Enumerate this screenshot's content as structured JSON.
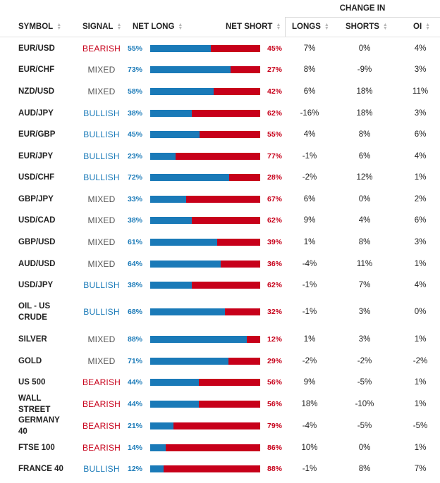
{
  "header": {
    "change_in": "CHANGE IN",
    "symbol": "SYMBOL",
    "signal": "SIGNAL",
    "net_long": "NET LONG",
    "net_short": "NET SHORT",
    "longs": "LONGS",
    "shorts": "SHORTS",
    "oi": "OI"
  },
  "colors": {
    "long": "#1a7ab8",
    "short": "#c7001a",
    "bearish": "#c7001a",
    "bullish": "#1a7ab8",
    "mixed": "#555555"
  },
  "rows": [
    {
      "symbol": "EUR/USD",
      "signal": "BEARISH",
      "net_long": "55%",
      "net_short": "45%",
      "long_fraction": 0.55,
      "longs": "7%",
      "shorts": "0%",
      "oi": "4%"
    },
    {
      "symbol": "EUR/CHF",
      "signal": "MIXED",
      "net_long": "73%",
      "net_short": "27%",
      "long_fraction": 0.73,
      "longs": "8%",
      "shorts": "-9%",
      "oi": "3%"
    },
    {
      "symbol": "NZD/USD",
      "signal": "MIXED",
      "net_long": "58%",
      "net_short": "42%",
      "long_fraction": 0.58,
      "longs": "6%",
      "shorts": "18%",
      "oi": "11%"
    },
    {
      "symbol": "AUD/JPY",
      "signal": "BULLISH",
      "net_long": "38%",
      "net_short": "62%",
      "long_fraction": 0.38,
      "longs": "-16%",
      "shorts": "18%",
      "oi": "3%"
    },
    {
      "symbol": "EUR/GBP",
      "signal": "BULLISH",
      "net_long": "45%",
      "net_short": "55%",
      "long_fraction": 0.45,
      "longs": "4%",
      "shorts": "8%",
      "oi": "6%"
    },
    {
      "symbol": "EUR/JPY",
      "signal": "BULLISH",
      "net_long": "23%",
      "net_short": "77%",
      "long_fraction": 0.23,
      "longs": "-1%",
      "shorts": "6%",
      "oi": "4%"
    },
    {
      "symbol": "USD/CHF",
      "signal": "BULLISH",
      "net_long": "72%",
      "net_short": "28%",
      "long_fraction": 0.72,
      "longs": "-2%",
      "shorts": "12%",
      "oi": "1%"
    },
    {
      "symbol": "GBP/JPY",
      "signal": "MIXED",
      "net_long": "33%",
      "net_short": "67%",
      "long_fraction": 0.33,
      "longs": "6%",
      "shorts": "0%",
      "oi": "2%"
    },
    {
      "symbol": "USD/CAD",
      "signal": "MIXED",
      "net_long": "38%",
      "net_short": "62%",
      "long_fraction": 0.38,
      "longs": "9%",
      "shorts": "4%",
      "oi": "6%"
    },
    {
      "symbol": "GBP/USD",
      "signal": "MIXED",
      "net_long": "61%",
      "net_short": "39%",
      "long_fraction": 0.61,
      "longs": "1%",
      "shorts": "8%",
      "oi": "3%"
    },
    {
      "symbol": "AUD/USD",
      "signal": "MIXED",
      "net_long": "64%",
      "net_short": "36%",
      "long_fraction": 0.64,
      "longs": "-4%",
      "shorts": "11%",
      "oi": "1%"
    },
    {
      "symbol": "USD/JPY",
      "signal": "BULLISH",
      "net_long": "38%",
      "net_short": "62%",
      "long_fraction": 0.38,
      "longs": "-1%",
      "shorts": "7%",
      "oi": "4%"
    },
    {
      "symbol": "OIL - US CRUDE",
      "signal": "BULLISH",
      "net_long": "68%",
      "net_short": "32%",
      "long_fraction": 0.68,
      "longs": "-1%",
      "shorts": "3%",
      "oi": "0%"
    },
    {
      "symbol": "SILVER",
      "signal": "MIXED",
      "net_long": "88%",
      "net_short": "12%",
      "long_fraction": 0.88,
      "longs": "1%",
      "shorts": "3%",
      "oi": "1%"
    },
    {
      "symbol": "GOLD",
      "signal": "MIXED",
      "net_long": "71%",
      "net_short": "29%",
      "long_fraction": 0.71,
      "longs": "-2%",
      "shorts": "-2%",
      "oi": "-2%"
    },
    {
      "symbol": "US 500",
      "signal": "BEARISH",
      "net_long": "44%",
      "net_short": "56%",
      "long_fraction": 0.44,
      "longs": "9%",
      "shorts": "-5%",
      "oi": "1%"
    },
    {
      "symbol": "WALL STREET",
      "signal": "BEARISH",
      "net_long": "44%",
      "net_short": "56%",
      "long_fraction": 0.44,
      "longs": "18%",
      "shorts": "-10%",
      "oi": "1%"
    },
    {
      "symbol": "GERMANY 40",
      "signal": "BEARISH",
      "net_long": "21%",
      "net_short": "79%",
      "long_fraction": 0.21,
      "longs": "-4%",
      "shorts": "-5%",
      "oi": "-5%"
    },
    {
      "symbol": "FTSE 100",
      "signal": "BEARISH",
      "net_long": "14%",
      "net_short": "86%",
      "long_fraction": 0.14,
      "longs": "10%",
      "shorts": "0%",
      "oi": "1%"
    },
    {
      "symbol": "FRANCE 40",
      "signal": "BULLISH",
      "net_long": "12%",
      "net_short": "88%",
      "long_fraction": 0.12,
      "longs": "-1%",
      "shorts": "8%",
      "oi": "7%"
    }
  ]
}
